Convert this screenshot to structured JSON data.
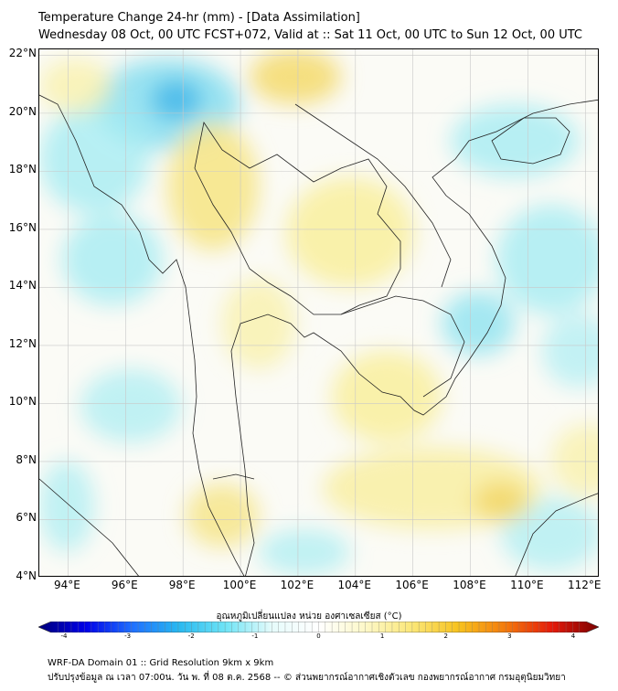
{
  "title_line1": "Temperature Change 24-hr (mm) - [Data Assimilation]",
  "title_line2": "Wednesday 08 Oct, 00 UTC FCST+072, Valid at :: Sat 11 Oct, 00 UTC to Sun 12 Oct, 00 UTC",
  "map": {
    "lat_range": [
      4,
      22.2
    ],
    "lon_range": [
      93,
      112.5
    ],
    "lat_ticks": [
      "22°N",
      "20°N",
      "18°N",
      "16°N",
      "14°N",
      "12°N",
      "10°N",
      "8°N",
      "6°N",
      "4°N"
    ],
    "lon_ticks": [
      "94°E",
      "96°E",
      "98°E",
      "100°E",
      "102°E",
      "104°E",
      "106°E",
      "108°E",
      "110°E",
      "112°E"
    ],
    "colors": {
      "ocean_cool": "#a6ecf2",
      "cool_strong": "#4fc3e8",
      "warm": "#f8efa2",
      "warm_strong": "#f3d869",
      "neutral": "#fbfbf6"
    }
  },
  "colorbar": {
    "title": "อุณหภูมิเปลี่ยนแปลง หน่วย องศาเซลเซียส (°C)",
    "ticks": [
      "-4",
      "-3",
      "-2",
      "-1",
      "0",
      "1",
      "2",
      "3",
      "4"
    ],
    "stops": [
      "#00007a",
      "#0000e8",
      "#1f6fff",
      "#28b8f0",
      "#6ee4f6",
      "#e6fbfb",
      "#ffffff",
      "#fdf8c8",
      "#fbe778",
      "#f7c21e",
      "#f47a0c",
      "#e51a0a",
      "#7a0000"
    ]
  },
  "footer_line1": "WRF-DA Domain 01 :: Grid Resolution 9km x 9km",
  "footer_line2": "ปรับปรุงข้อมูล ณ เวลา 07:00น. วัน พ. ที่ 08 ต.ค. 2568 -- © ส่วนพยากรณ์อากาศเชิงตัวเลข กองพยากรณ์อากาศ กรมอุตุนิยมวิทยา"
}
